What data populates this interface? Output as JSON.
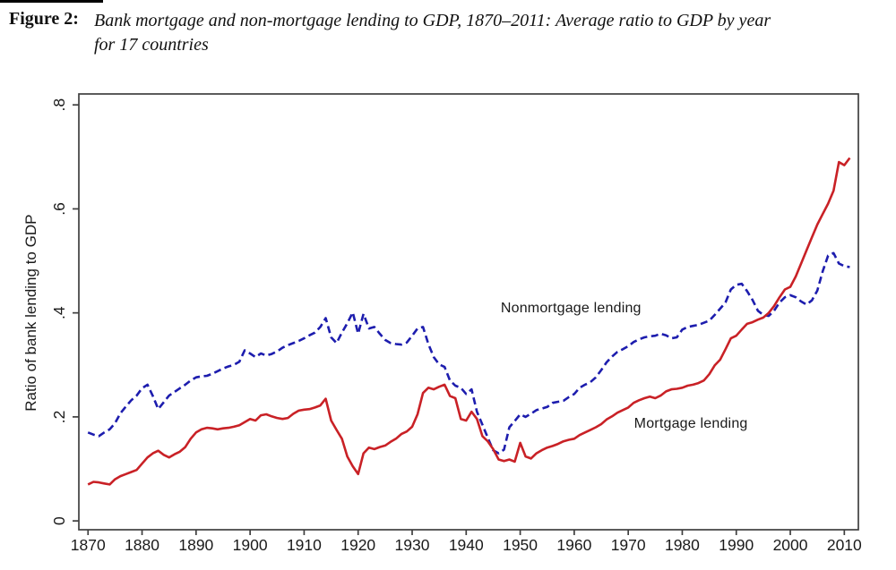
{
  "figure": {
    "label": "Figure 2:",
    "caption_line1": "Bank mortgage and non-mortgage lending to GDP, 1870–2011: Average ratio to GDP by year",
    "caption_line2": "for 17 countries"
  },
  "chart_data": {
    "type": "line",
    "title": "",
    "xlabel": "",
    "ylabel": "Ratio of bank lending to GDP",
    "xlim": [
      1868.3,
      2012.6
    ],
    "ylim": [
      -0.017,
      0.821
    ],
    "x_ticks": [
      1870,
      1880,
      1890,
      1900,
      1910,
      1920,
      1930,
      1940,
      1950,
      1960,
      1970,
      1980,
      1990,
      2000,
      2010
    ],
    "y_tick_values": [
      0,
      0.2,
      0.4,
      0.6,
      0.8
    ],
    "y_tick_labels": [
      "0",
      ".2",
      ".4",
      ".6",
      ".8"
    ],
    "grid": false,
    "legend": "inline-annotations",
    "axis_color": "#3f3f3f",
    "text_color": "#1a1a1a",
    "annotations": [
      {
        "text": "Nonmortgage lending",
        "x": 1959.4,
        "y": 0.408
      },
      {
        "text": "Mortgage lending",
        "x": 1981.6,
        "y": 0.186
      }
    ],
    "series": [
      {
        "name": "Nonmortgage lending",
        "color": "#1d1dae",
        "style": "dashed",
        "points": [
          [
            1870,
            0.17
          ],
          [
            1871,
            0.166
          ],
          [
            1872,
            0.163
          ],
          [
            1873,
            0.17
          ],
          [
            1874,
            0.176
          ],
          [
            1875,
            0.188
          ],
          [
            1876,
            0.207
          ],
          [
            1877,
            0.22
          ],
          [
            1878,
            0.232
          ],
          [
            1879,
            0.241
          ],
          [
            1880,
            0.255
          ],
          [
            1881,
            0.262
          ],
          [
            1882,
            0.24
          ],
          [
            1883,
            0.215
          ],
          [
            1884,
            0.228
          ],
          [
            1885,
            0.241
          ],
          [
            1886,
            0.248
          ],
          [
            1887,
            0.255
          ],
          [
            1888,
            0.262
          ],
          [
            1889,
            0.27
          ],
          [
            1890,
            0.276
          ],
          [
            1891,
            0.278
          ],
          [
            1892,
            0.279
          ],
          [
            1893,
            0.283
          ],
          [
            1894,
            0.288
          ],
          [
            1895,
            0.293
          ],
          [
            1896,
            0.297
          ],
          [
            1897,
            0.3
          ],
          [
            1898,
            0.306
          ],
          [
            1899,
            0.328
          ],
          [
            1900,
            0.322
          ],
          [
            1901,
            0.315
          ],
          [
            1902,
            0.322
          ],
          [
            1903,
            0.318
          ],
          [
            1904,
            0.321
          ],
          [
            1905,
            0.326
          ],
          [
            1906,
            0.333
          ],
          [
            1907,
            0.338
          ],
          [
            1908,
            0.342
          ],
          [
            1909,
            0.346
          ],
          [
            1910,
            0.351
          ],
          [
            1911,
            0.357
          ],
          [
            1912,
            0.362
          ],
          [
            1913,
            0.373
          ],
          [
            1914,
            0.39
          ],
          [
            1915,
            0.353
          ],
          [
            1916,
            0.342
          ],
          [
            1917,
            0.362
          ],
          [
            1918,
            0.38
          ],
          [
            1919,
            0.401
          ],
          [
            1920,
            0.36
          ],
          [
            1921,
            0.398
          ],
          [
            1922,
            0.37
          ],
          [
            1923,
            0.373
          ],
          [
            1924,
            0.36
          ],
          [
            1925,
            0.348
          ],
          [
            1926,
            0.342
          ],
          [
            1927,
            0.34
          ],
          [
            1928,
            0.339
          ],
          [
            1929,
            0.343
          ],
          [
            1930,
            0.356
          ],
          [
            1931,
            0.37
          ],
          [
            1932,
            0.373
          ],
          [
            1933,
            0.34
          ],
          [
            1934,
            0.315
          ],
          [
            1935,
            0.301
          ],
          [
            1936,
            0.296
          ],
          [
            1937,
            0.27
          ],
          [
            1938,
            0.26
          ],
          [
            1939,
            0.256
          ],
          [
            1940,
            0.244
          ],
          [
            1941,
            0.253
          ],
          [
            1942,
            0.21
          ],
          [
            1943,
            0.185
          ],
          [
            1944,
            0.16
          ],
          [
            1945,
            0.136
          ],
          [
            1946,
            0.13
          ],
          [
            1947,
            0.137
          ],
          [
            1948,
            0.18
          ],
          [
            1949,
            0.192
          ],
          [
            1950,
            0.205
          ],
          [
            1951,
            0.2
          ],
          [
            1952,
            0.206
          ],
          [
            1953,
            0.213
          ],
          [
            1954,
            0.216
          ],
          [
            1955,
            0.219
          ],
          [
            1956,
            0.227
          ],
          [
            1957,
            0.229
          ],
          [
            1958,
            0.231
          ],
          [
            1959,
            0.238
          ],
          [
            1960,
            0.244
          ],
          [
            1961,
            0.256
          ],
          [
            1962,
            0.262
          ],
          [
            1963,
            0.267
          ],
          [
            1964,
            0.276
          ],
          [
            1965,
            0.29
          ],
          [
            1966,
            0.305
          ],
          [
            1967,
            0.316
          ],
          [
            1968,
            0.325
          ],
          [
            1969,
            0.33
          ],
          [
            1970,
            0.336
          ],
          [
            1971,
            0.344
          ],
          [
            1972,
            0.349
          ],
          [
            1973,
            0.353
          ],
          [
            1974,
            0.355
          ],
          [
            1975,
            0.356
          ],
          [
            1976,
            0.36
          ],
          [
            1977,
            0.357
          ],
          [
            1978,
            0.351
          ],
          [
            1979,
            0.353
          ],
          [
            1980,
            0.368
          ],
          [
            1981,
            0.373
          ],
          [
            1982,
            0.375
          ],
          [
            1983,
            0.377
          ],
          [
            1984,
            0.381
          ],
          [
            1985,
            0.385
          ],
          [
            1986,
            0.396
          ],
          [
            1987,
            0.408
          ],
          [
            1988,
            0.42
          ],
          [
            1989,
            0.445
          ],
          [
            1990,
            0.454
          ],
          [
            1991,
            0.456
          ],
          [
            1992,
            0.442
          ],
          [
            1993,
            0.425
          ],
          [
            1994,
            0.404
          ],
          [
            1995,
            0.396
          ],
          [
            1996,
            0.394
          ],
          [
            1997,
            0.404
          ],
          [
            1998,
            0.42
          ],
          [
            1999,
            0.43
          ],
          [
            2000,
            0.434
          ],
          [
            2001,
            0.43
          ],
          [
            2002,
            0.422
          ],
          [
            2003,
            0.416
          ],
          [
            2004,
            0.424
          ],
          [
            2005,
            0.443
          ],
          [
            2006,
            0.48
          ],
          [
            2007,
            0.51
          ],
          [
            2008,
            0.515
          ],
          [
            2009,
            0.495
          ],
          [
            2010,
            0.49
          ],
          [
            2011,
            0.488
          ]
        ]
      },
      {
        "name": "Mortgage lending",
        "color": "#c92126",
        "style": "solid",
        "points": [
          [
            1870,
            0.07
          ],
          [
            1871,
            0.075
          ],
          [
            1872,
            0.074
          ],
          [
            1873,
            0.072
          ],
          [
            1874,
            0.07
          ],
          [
            1875,
            0.08
          ],
          [
            1876,
            0.086
          ],
          [
            1877,
            0.09
          ],
          [
            1878,
            0.094
          ],
          [
            1879,
            0.098
          ],
          [
            1880,
            0.11
          ],
          [
            1881,
            0.122
          ],
          [
            1882,
            0.13
          ],
          [
            1883,
            0.135
          ],
          [
            1884,
            0.127
          ],
          [
            1885,
            0.122
          ],
          [
            1886,
            0.128
          ],
          [
            1887,
            0.133
          ],
          [
            1888,
            0.142
          ],
          [
            1889,
            0.158
          ],
          [
            1890,
            0.17
          ],
          [
            1891,
            0.176
          ],
          [
            1892,
            0.179
          ],
          [
            1893,
            0.178
          ],
          [
            1894,
            0.176
          ],
          [
            1895,
            0.178
          ],
          [
            1896,
            0.179
          ],
          [
            1897,
            0.181
          ],
          [
            1898,
            0.184
          ],
          [
            1899,
            0.19
          ],
          [
            1900,
            0.196
          ],
          [
            1901,
            0.193
          ],
          [
            1902,
            0.203
          ],
          [
            1903,
            0.205
          ],
          [
            1904,
            0.201
          ],
          [
            1905,
            0.198
          ],
          [
            1906,
            0.196
          ],
          [
            1907,
            0.198
          ],
          [
            1908,
            0.206
          ],
          [
            1909,
            0.212
          ],
          [
            1910,
            0.214
          ],
          [
            1911,
            0.215
          ],
          [
            1912,
            0.218
          ],
          [
            1913,
            0.222
          ],
          [
            1914,
            0.235
          ],
          [
            1915,
            0.193
          ],
          [
            1916,
            0.175
          ],
          [
            1917,
            0.158
          ],
          [
            1918,
            0.124
          ],
          [
            1919,
            0.105
          ],
          [
            1920,
            0.09
          ],
          [
            1921,
            0.13
          ],
          [
            1922,
            0.141
          ],
          [
            1923,
            0.138
          ],
          [
            1924,
            0.142
          ],
          [
            1925,
            0.145
          ],
          [
            1926,
            0.152
          ],
          [
            1927,
            0.158
          ],
          [
            1928,
            0.167
          ],
          [
            1929,
            0.172
          ],
          [
            1930,
            0.181
          ],
          [
            1931,
            0.205
          ],
          [
            1932,
            0.246
          ],
          [
            1933,
            0.256
          ],
          [
            1934,
            0.253
          ],
          [
            1935,
            0.258
          ],
          [
            1936,
            0.262
          ],
          [
            1937,
            0.24
          ],
          [
            1938,
            0.236
          ],
          [
            1939,
            0.196
          ],
          [
            1940,
            0.193
          ],
          [
            1941,
            0.21
          ],
          [
            1942,
            0.196
          ],
          [
            1943,
            0.163
          ],
          [
            1944,
            0.153
          ],
          [
            1945,
            0.138
          ],
          [
            1946,
            0.118
          ],
          [
            1947,
            0.115
          ],
          [
            1948,
            0.118
          ],
          [
            1949,
            0.114
          ],
          [
            1950,
            0.15
          ],
          [
            1951,
            0.124
          ],
          [
            1952,
            0.12
          ],
          [
            1953,
            0.13
          ],
          [
            1954,
            0.136
          ],
          [
            1955,
            0.141
          ],
          [
            1956,
            0.144
          ],
          [
            1957,
            0.148
          ],
          [
            1958,
            0.153
          ],
          [
            1959,
            0.156
          ],
          [
            1960,
            0.158
          ],
          [
            1961,
            0.165
          ],
          [
            1962,
            0.17
          ],
          [
            1963,
            0.175
          ],
          [
            1964,
            0.18
          ],
          [
            1965,
            0.186
          ],
          [
            1966,
            0.195
          ],
          [
            1967,
            0.201
          ],
          [
            1968,
            0.208
          ],
          [
            1969,
            0.213
          ],
          [
            1970,
            0.218
          ],
          [
            1971,
            0.227
          ],
          [
            1972,
            0.232
          ],
          [
            1973,
            0.236
          ],
          [
            1974,
            0.239
          ],
          [
            1975,
            0.236
          ],
          [
            1976,
            0.241
          ],
          [
            1977,
            0.249
          ],
          [
            1978,
            0.253
          ],
          [
            1979,
            0.254
          ],
          [
            1980,
            0.256
          ],
          [
            1981,
            0.26
          ],
          [
            1982,
            0.262
          ],
          [
            1983,
            0.265
          ],
          [
            1984,
            0.27
          ],
          [
            1985,
            0.282
          ],
          [
            1986,
            0.299
          ],
          [
            1987,
            0.31
          ],
          [
            1988,
            0.33
          ],
          [
            1989,
            0.351
          ],
          [
            1990,
            0.356
          ],
          [
            1991,
            0.368
          ],
          [
            1992,
            0.379
          ],
          [
            1993,
            0.382
          ],
          [
            1994,
            0.387
          ],
          [
            1995,
            0.391
          ],
          [
            1996,
            0.4
          ],
          [
            1997,
            0.413
          ],
          [
            1998,
            0.43
          ],
          [
            1999,
            0.445
          ],
          [
            2000,
            0.45
          ],
          [
            2001,
            0.47
          ],
          [
            2002,
            0.495
          ],
          [
            2003,
            0.52
          ],
          [
            2004,
            0.545
          ],
          [
            2005,
            0.57
          ],
          [
            2006,
            0.59
          ],
          [
            2007,
            0.61
          ],
          [
            2008,
            0.635
          ],
          [
            2009,
            0.69
          ],
          [
            2010,
            0.684
          ],
          [
            2011,
            0.698
          ]
        ]
      }
    ]
  }
}
